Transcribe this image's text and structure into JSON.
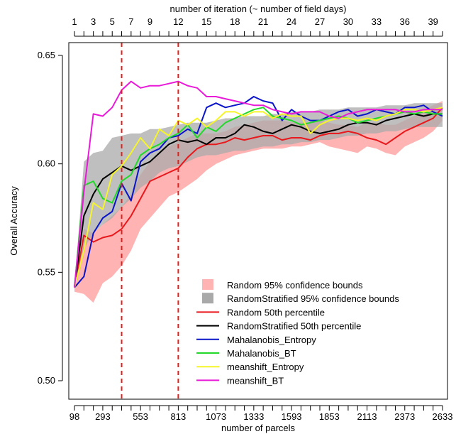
{
  "chart_data": {
    "type": "line",
    "title": "",
    "xlabel": "number of parcels",
    "ylabel": "Overall Accuracy",
    "top_axis_label": "number of iteration (~ number of field days)",
    "bottom_tick_labels": [
      "98",
      "293",
      "553",
      "813",
      "1073",
      "1333",
      "1593",
      "1853",
      "2113",
      "2373",
      "2633"
    ],
    "top_tick_labels": [
      "1",
      "3",
      "5",
      "7",
      "9",
      "12",
      "15",
      "18",
      "21",
      "24",
      "27",
      "30",
      "33",
      "36",
      "39"
    ],
    "ylim": [
      0.5,
      0.65
    ],
    "y_ticks": [
      "0.50",
      "0.55",
      "0.60",
      "0.65"
    ],
    "iterations": [
      1,
      2,
      3,
      4,
      5,
      6,
      7,
      8,
      9,
      10,
      11,
      12,
      13,
      14,
      15,
      16,
      17,
      18,
      19,
      20,
      21,
      22,
      23,
      24,
      25,
      26,
      27,
      28,
      29,
      30,
      31,
      32,
      33,
      34,
      35,
      36,
      37,
      38,
      39,
      40
    ],
    "parcels_per_iteration": 65,
    "vertical_markers": {
      "parcels": [
        423,
        813
      ],
      "color": "#e0201c"
    },
    "legend_position": "bottom-right",
    "legend": [
      {
        "label": "Random 95% confidence bounds",
        "kind": "box",
        "color": "#ffb3b3"
      },
      {
        "label": "RandomStratified 95% confidence bounds",
        "kind": "box",
        "color": "#a9a9a9"
      },
      {
        "label": "Random 50th percentile",
        "kind": "line",
        "color": "#e8181c"
      },
      {
        "label": "RandomStratified 50th percentile",
        "kind": "line",
        "color": "#000000"
      },
      {
        "label": "Mahalanobis_Entropy",
        "kind": "line",
        "color": "#0a14c8"
      },
      {
        "label": "Mahalanobis_BT",
        "kind": "line",
        "color": "#22d82a"
      },
      {
        "label": "meanshift_Entropy",
        "kind": "line",
        "color": "#f5f52a"
      },
      {
        "label": "meanshift_BT",
        "kind": "line",
        "color": "#e81ad8"
      }
    ],
    "bands": [
      {
        "name": "Random 95% confidence bounds",
        "color": "#ffb3b3",
        "lower": [
          0.541,
          0.54,
          0.536,
          0.545,
          0.548,
          0.553,
          0.56,
          0.57,
          0.575,
          0.58,
          0.585,
          0.587,
          0.59,
          0.593,
          0.597,
          0.6,
          0.602,
          0.604,
          0.605,
          0.606,
          0.607,
          0.607,
          0.607,
          0.608,
          0.608,
          0.609,
          0.61,
          0.608,
          0.607,
          0.606,
          0.605,
          0.608,
          0.607,
          0.605,
          0.604,
          0.608,
          0.61,
          0.612,
          0.615,
          0.62
        ],
        "upper": [
          0.543,
          0.57,
          0.568,
          0.572,
          0.576,
          0.58,
          0.586,
          0.595,
          0.601,
          0.605,
          0.608,
          0.61,
          0.612,
          0.614,
          0.614,
          0.614,
          0.615,
          0.617,
          0.618,
          0.619,
          0.62,
          0.62,
          0.62,
          0.619,
          0.619,
          0.619,
          0.62,
          0.619,
          0.618,
          0.618,
          0.617,
          0.619,
          0.619,
          0.618,
          0.618,
          0.62,
          0.622,
          0.625,
          0.627,
          0.629
        ]
      },
      {
        "name": "RandomStratified 95% confidence bounds",
        "color": "#a9a9a9",
        "lower": [
          0.543,
          0.561,
          0.568,
          0.572,
          0.575,
          0.58,
          0.584,
          0.589,
          0.592,
          0.596,
          0.598,
          0.599,
          0.601,
          0.603,
          0.604,
          0.604,
          0.605,
          0.606,
          0.606,
          0.607,
          0.608,
          0.608,
          0.609,
          0.609,
          0.61,
          0.61,
          0.611,
          0.611,
          0.612,
          0.613,
          0.613,
          0.614,
          0.614,
          0.615,
          0.615,
          0.616,
          0.617,
          0.617,
          0.617,
          0.617
        ],
        "upper": [
          0.543,
          0.601,
          0.605,
          0.606,
          0.612,
          0.613,
          0.614,
          0.614,
          0.616,
          0.616,
          0.617,
          0.618,
          0.619,
          0.619,
          0.619,
          0.62,
          0.621,
          0.621,
          0.622,
          0.622,
          0.622,
          0.623,
          0.623,
          0.624,
          0.624,
          0.624,
          0.625,
          0.625,
          0.625,
          0.626,
          0.626,
          0.626,
          0.626,
          0.627,
          0.627,
          0.627,
          0.628,
          0.628,
          0.628,
          0.628
        ]
      }
    ],
    "series": [
      {
        "name": "Random 50th percentile",
        "color": "#e8181c",
        "values": [
          0.543,
          0.567,
          0.564,
          0.566,
          0.567,
          0.57,
          0.576,
          0.584,
          0.592,
          0.594,
          0.596,
          0.598,
          0.603,
          0.607,
          0.609,
          0.609,
          0.61,
          0.612,
          0.611,
          0.612,
          0.613,
          0.613,
          0.611,
          0.612,
          0.612,
          0.611,
          0.613,
          0.614,
          0.614,
          0.615,
          0.614,
          0.612,
          0.611,
          0.609,
          0.612,
          0.615,
          0.617,
          0.619,
          0.621,
          0.626
        ]
      },
      {
        "name": "RandomStratified 50th percentile",
        "color": "#000000",
        "values": [
          0.543,
          0.576,
          0.586,
          0.593,
          0.596,
          0.599,
          0.597,
          0.599,
          0.601,
          0.605,
          0.609,
          0.611,
          0.61,
          0.611,
          0.609,
          0.612,
          0.612,
          0.614,
          0.618,
          0.617,
          0.615,
          0.614,
          0.616,
          0.618,
          0.617,
          0.615,
          0.614,
          0.615,
          0.616,
          0.618,
          0.619,
          0.619,
          0.618,
          0.62,
          0.621,
          0.622,
          0.623,
          0.622,
          0.623,
          0.623
        ]
      },
      {
        "name": "Mahalanobis_Entropy",
        "color": "#0a14c8",
        "values": [
          0.543,
          0.548,
          0.568,
          0.575,
          0.578,
          0.591,
          0.583,
          0.601,
          0.605,
          0.607,
          0.612,
          0.613,
          0.616,
          0.614,
          0.626,
          0.628,
          0.626,
          0.627,
          0.628,
          0.631,
          0.629,
          0.628,
          0.62,
          0.625,
          0.622,
          0.62,
          0.62,
          0.622,
          0.624,
          0.625,
          0.622,
          0.623,
          0.625,
          0.624,
          0.623,
          0.626,
          0.626,
          0.627,
          0.624,
          0.622
        ]
      },
      {
        "name": "Mahalanobis_BT",
        "color": "#22d82a",
        "values": [
          0.543,
          0.59,
          0.592,
          0.584,
          0.582,
          0.592,
          0.595,
          0.604,
          0.607,
          0.609,
          0.612,
          0.614,
          0.618,
          0.612,
          0.617,
          0.615,
          0.619,
          0.621,
          0.623,
          0.625,
          0.626,
          0.622,
          0.621,
          0.62,
          0.618,
          0.619,
          0.62,
          0.621,
          0.622,
          0.621,
          0.619,
          0.62,
          0.621,
          0.622,
          0.623,
          0.624,
          0.623,
          0.624,
          0.623,
          0.623
        ]
      },
      {
        "name": "meanshift_Entropy",
        "color": "#f5f52a",
        "values": [
          0.543,
          0.56,
          0.582,
          0.579,
          0.595,
          0.599,
          0.605,
          0.612,
          0.607,
          0.616,
          0.613,
          0.62,
          0.618,
          0.621,
          0.617,
          0.62,
          0.624,
          0.624,
          0.622,
          0.624,
          0.624,
          0.621,
          0.623,
          0.622,
          0.622,
          0.614,
          0.618,
          0.62,
          0.621,
          0.621,
          0.62,
          0.621,
          0.62,
          0.622,
          0.623,
          0.625,
          0.625,
          0.624,
          0.625,
          0.626
        ]
      },
      {
        "name": "meanshift_BT",
        "color": "#e81ad8",
        "values": [
          0.543,
          0.587,
          0.623,
          0.622,
          0.626,
          0.634,
          0.638,
          0.635,
          0.636,
          0.636,
          0.637,
          0.638,
          0.636,
          0.635,
          0.631,
          0.631,
          0.63,
          0.629,
          0.628,
          0.627,
          0.627,
          0.625,
          0.624,
          0.623,
          0.624,
          0.624,
          0.624,
          0.622,
          0.621,
          0.623,
          0.624,
          0.625,
          0.625,
          0.625,
          0.625,
          0.624,
          0.624,
          0.625,
          0.625,
          0.625
        ]
      }
    ]
  }
}
